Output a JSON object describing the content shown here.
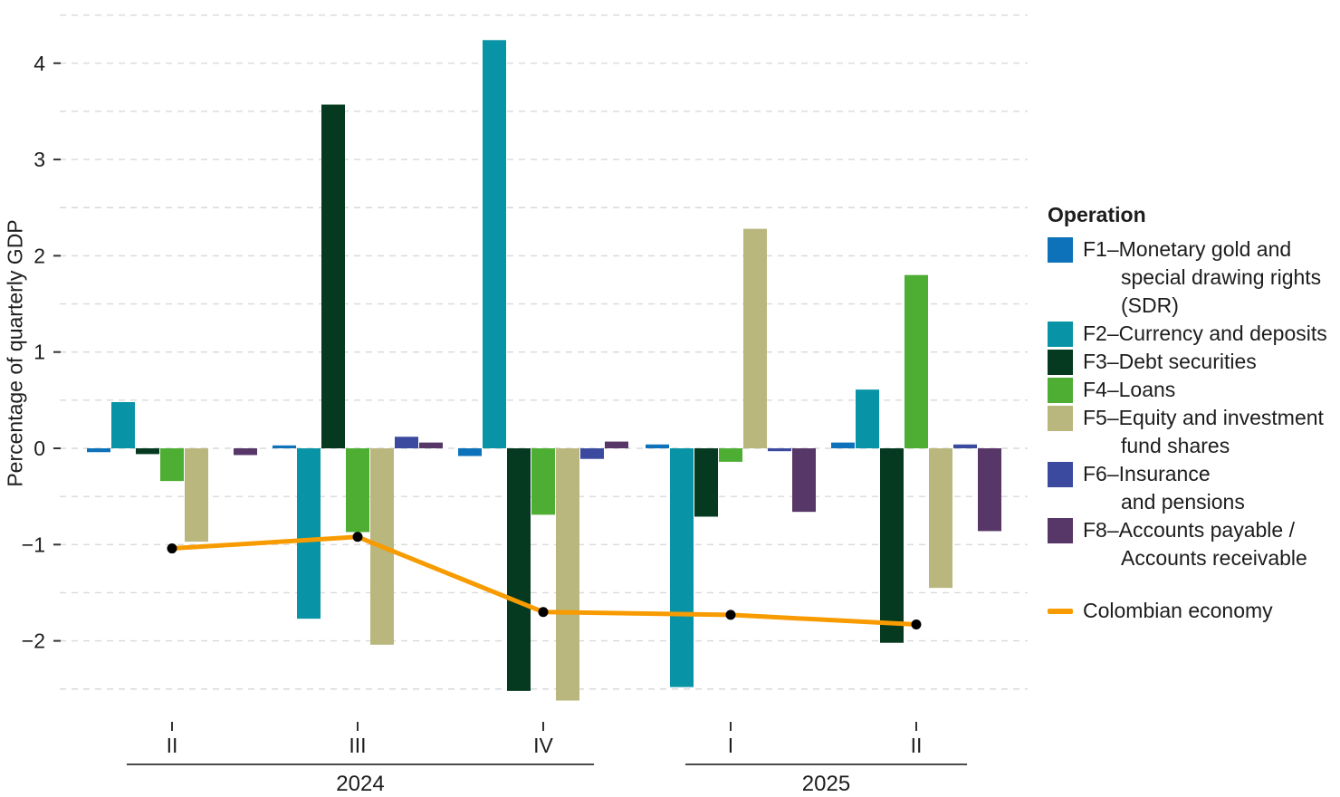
{
  "chart_data": {
    "type": "bar+line",
    "title": "",
    "ylabel": "Percentage of quarterly GDP",
    "ylim": [
      -2.5,
      4.5
    ],
    "grid_step": 0.5,
    "yticks": [
      4,
      3,
      2,
      1,
      0,
      -1,
      -2
    ],
    "grid_on": true,
    "legend_position": "right",
    "categories": [
      "II",
      "III",
      "IV",
      "I",
      "II"
    ],
    "year_groups": [
      {
        "label": "2024",
        "start": 0,
        "end": 2
      },
      {
        "label": "2025",
        "start": 3,
        "end": 4
      }
    ],
    "series": [
      {
        "id": "F1",
        "name": "F1–Monetary gold and special drawing rights (SDR)",
        "color": "#0d72b9",
        "values": [
          -0.04,
          0.03,
          -0.08,
          0.04,
          0.06
        ]
      },
      {
        "id": "F2",
        "name": "F2–Currency and deposits",
        "color": "#0894a6",
        "values": [
          0.48,
          -1.77,
          4.24,
          -2.48,
          0.61
        ]
      },
      {
        "id": "F3",
        "name": "F3–Debt securities",
        "color": "#053a20",
        "values": [
          -0.06,
          3.57,
          -2.52,
          -0.71,
          -2.02
        ]
      },
      {
        "id": "F4",
        "name": "F4–Loans",
        "color": "#4ead33",
        "values": [
          -0.34,
          -0.87,
          -0.69,
          -0.14,
          1.8
        ]
      },
      {
        "id": "F5",
        "name": "F5–Equity and investment fund shares",
        "color": "#b9b77e",
        "values": [
          -0.97,
          -2.04,
          -2.62,
          2.28,
          -1.45
        ]
      },
      {
        "id": "F6",
        "name": "F6–Insurance and pensions",
        "color": "#3b4a9f",
        "values": [
          0.0,
          0.12,
          -0.11,
          -0.03,
          0.04
        ]
      },
      {
        "id": "F8",
        "name": "F8–Accounts payable / Accounts receivable",
        "color": "#573768",
        "values": [
          -0.07,
          0.06,
          0.07,
          -0.66,
          -0.86
        ]
      }
    ],
    "line_series": {
      "name": "Colombian economy",
      "color": "#f89b00",
      "point_color": "#000000",
      "values": [
        -1.04,
        -0.92,
        -1.7,
        -1.73,
        -1.83
      ]
    }
  },
  "legend": {
    "title": "Operation",
    "items": [
      {
        "id": "F1",
        "color": "#0d72b9",
        "lines": [
          "F1–Monetary gold and",
          "special drawing rights",
          "(SDR)"
        ]
      },
      {
        "id": "F2",
        "color": "#0894a6",
        "lines": [
          "F2–Currency and deposits"
        ]
      },
      {
        "id": "F3",
        "color": "#053a20",
        "lines": [
          "F3–Debt securities"
        ]
      },
      {
        "id": "F4",
        "color": "#4ead33",
        "lines": [
          "F4–Loans"
        ]
      },
      {
        "id": "F5",
        "color": "#b9b77e",
        "lines": [
          "F5–Equity and investment",
          "fund shares"
        ]
      },
      {
        "id": "F6",
        "color": "#3b4a9f",
        "lines": [
          "F6–Insurance",
          "and pensions"
        ]
      },
      {
        "id": "F8",
        "color": "#573768",
        "lines": [
          "F8–Accounts payable /",
          "Accounts receivable"
        ]
      }
    ],
    "line_item": {
      "label": "Colombian economy",
      "color": "#f89b00"
    }
  },
  "style_colors": {
    "gridline": "#d9d9d9",
    "axis_text": "#1d1d1d",
    "axis_line": "#333333"
  }
}
